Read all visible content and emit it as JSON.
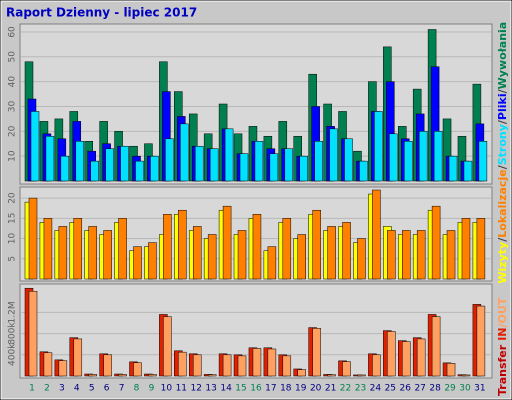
{
  "chart_data": [
    {
      "type": "bar",
      "title": "Raport Dzienny -  lipiec 2017",
      "ylim": [
        0,
        62
      ],
      "yticks": [
        10,
        20,
        30,
        40,
        50,
        60
      ],
      "grid": true,
      "series": [
        {
          "name": "Wywołania",
          "color": "#008050",
          "values": [
            48,
            24,
            25,
            28,
            16,
            24,
            20,
            14,
            15,
            48,
            36,
            27,
            19,
            31,
            19,
            22,
            18,
            24,
            18,
            43,
            31,
            28,
            12,
            40,
            54,
            22,
            37,
            61,
            25,
            18,
            39
          ]
        },
        {
          "name": "Pliki",
          "color": "#0000ff",
          "values": [
            33,
            19,
            17,
            24,
            12,
            15,
            14,
            10,
            10,
            36,
            26,
            14,
            13,
            21,
            11,
            16,
            13,
            13,
            10,
            30,
            22,
            17,
            8,
            28,
            40,
            17,
            27,
            46,
            10,
            8,
            23
          ]
        },
        {
          "name": "Strony",
          "color": "#00e0ff",
          "values": [
            28,
            18,
            10,
            16,
            8,
            13,
            14,
            8,
            10,
            17,
            23,
            14,
            13,
            21,
            11,
            16,
            11,
            13,
            10,
            16,
            21,
            17,
            8,
            28,
            19,
            16,
            20,
            20,
            10,
            8,
            16
          ]
        }
      ]
    },
    {
      "type": "bar",
      "ylim": [
        0,
        22
      ],
      "yticks": [
        5,
        10,
        15,
        20
      ],
      "grid": true,
      "series": [
        {
          "name": "Wizyty",
          "color": "#ffff00",
          "values": [
            19,
            14,
            12,
            14,
            12,
            11,
            14,
            7,
            8,
            11,
            16,
            12,
            10,
            17,
            11,
            15,
            7,
            14,
            10,
            16,
            12,
            13,
            9,
            21,
            13,
            11,
            11,
            17,
            11,
            14,
            14
          ]
        },
        {
          "name": "Lokalizacje",
          "color": "#ff8000",
          "values": [
            20,
            15,
            13,
            15,
            13,
            12,
            15,
            8,
            9,
            16,
            17,
            13,
            11,
            18,
            12,
            16,
            8,
            15,
            11,
            17,
            13,
            14,
            10,
            22,
            12,
            12,
            12,
            18,
            12,
            15,
            15
          ]
        }
      ]
    },
    {
      "type": "bar",
      "label": "Transfer",
      "label_color": "#c00000",
      "separator": "/",
      "ylim": [
        0,
        1680
      ],
      "yticks": [
        {
          "value": 400,
          "label": "400k"
        },
        {
          "value": 800,
          "label": "800k"
        },
        {
          "value": 1200,
          "label": "1.2M"
        }
      ],
      "grid": true,
      "categories": [
        "1",
        "2",
        "3",
        "4",
        "5",
        "6",
        "7",
        "8",
        "9",
        "10",
        "11",
        "12",
        "13",
        "14",
        "15",
        "16",
        "17",
        "18",
        "19",
        "20",
        "21",
        "22",
        "23",
        "24",
        "25",
        "26",
        "27",
        "28",
        "29",
        "30",
        "31"
      ],
      "label_colors": [
        "#008050",
        "#008050",
        "#000080",
        "#000080",
        "#000080",
        "#000080",
        "#000080",
        "#008050",
        "#008050",
        "#000080",
        "#000080",
        "#000080",
        "#000080",
        "#000080",
        "#008050",
        "#008050",
        "#000080",
        "#000080",
        "#000080",
        "#000080",
        "#000080",
        "#008050",
        "#008050",
        "#000080",
        "#000080",
        "#000080",
        "#000080",
        "#000080",
        "#008050",
        "#008050",
        "#000080"
      ],
      "series": [
        {
          "name": "IN",
          "color": "#e02000",
          "values": [
            1657,
            457,
            305,
            724,
            38,
            419,
            38,
            267,
            38,
            1162,
            476,
            419,
            30,
            419,
            400,
            533,
            533,
            400,
            133,
            914,
            30,
            286,
            20,
            419,
            857,
            667,
            724,
            1162,
            248,
            25,
            1352
          ]
        },
        {
          "name": "/OUT",
          "color": "#ffa060",
          "values": [
            1600,
            440,
            290,
            700,
            30,
            400,
            30,
            250,
            30,
            1120,
            450,
            400,
            25,
            400,
            380,
            520,
            510,
            380,
            120,
            900,
            25,
            270,
            20,
            400,
            840,
            650,
            700,
            1120,
            240,
            20,
            1320
          ]
        }
      ]
    }
  ]
}
